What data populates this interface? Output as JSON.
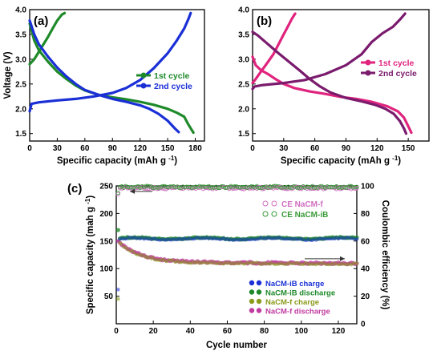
{
  "chart_data": [
    {
      "panel": "(a)",
      "type": "line",
      "xlabel": "Specific capacity (mAh g",
      "xlabel_sup": "-1",
      "xlabel_tail": ")",
      "ylabel": "Voltage (V)",
      "xlim": [
        0,
        190
      ],
      "ylim": [
        1.35,
        4.0
      ],
      "xticks": [
        "0",
        "30",
        "60",
        "90",
        "120",
        "150",
        "180"
      ],
      "yticks": [
        "1.5",
        "2.0",
        "2.5",
        "3.0",
        "3.5",
        "4.0"
      ],
      "legend_position": "right",
      "series": [
        {
          "name": "1st cycle",
          "color": "#1f8a2a",
          "charge": [
            [
              0,
              2.9
            ],
            [
              5,
              3.0
            ],
            [
              10,
              3.15
            ],
            [
              15,
              3.3
            ],
            [
              20,
              3.45
            ],
            [
              25,
              3.62
            ],
            [
              30,
              3.78
            ],
            [
              35,
              3.9
            ],
            [
              38,
              3.93
            ]
          ],
          "discharge": [
            [
              0,
              3.72
            ],
            [
              5,
              3.38
            ],
            [
              10,
              3.18
            ],
            [
              20,
              2.95
            ],
            [
              30,
              2.75
            ],
            [
              40,
              2.6
            ],
            [
              50,
              2.47
            ],
            [
              60,
              2.37
            ],
            [
              75,
              2.28
            ],
            [
              90,
              2.23
            ],
            [
              105,
              2.19
            ],
            [
              120,
              2.14
            ],
            [
              135,
              2.08
            ],
            [
              150,
              2.0
            ],
            [
              160,
              1.92
            ],
            [
              168,
              1.84
            ],
            [
              172,
              1.7
            ],
            [
              176,
              1.58
            ],
            [
              178,
              1.52
            ]
          ]
        },
        {
          "name": "2nd cycle",
          "color": "#1a2fd6",
          "charge": [
            [
              0,
              1.95
            ],
            [
              2,
              2.1
            ],
            [
              10,
              2.13
            ],
            [
              30,
              2.17
            ],
            [
              50,
              2.2
            ],
            [
              70,
              2.25
            ],
            [
              90,
              2.32
            ],
            [
              105,
              2.42
            ],
            [
              120,
              2.58
            ],
            [
              135,
              2.82
            ],
            [
              150,
              3.12
            ],
            [
              160,
              3.38
            ],
            [
              168,
              3.62
            ],
            [
              173,
              3.83
            ],
            [
              175,
              3.93
            ]
          ],
          "discharge": [
            [
              0,
              3.78
            ],
            [
              5,
              3.5
            ],
            [
              10,
              3.3
            ],
            [
              20,
              3.05
            ],
            [
              30,
              2.83
            ],
            [
              40,
              2.65
            ],
            [
              50,
              2.5
            ],
            [
              60,
              2.38
            ],
            [
              75,
              2.28
            ],
            [
              90,
              2.2
            ],
            [
              105,
              2.14
            ],
            [
              120,
              2.07
            ],
            [
              130,
              2.0
            ],
            [
              140,
              1.9
            ],
            [
              150,
              1.76
            ],
            [
              158,
              1.6
            ],
            [
              162,
              1.53
            ]
          ]
        }
      ]
    },
    {
      "panel": "(b)",
      "type": "line",
      "xlabel": "Specific capacity (mAh g",
      "xlabel_sup": "-1",
      "xlabel_tail": ")",
      "ylabel": "",
      "xlim": [
        0,
        170
      ],
      "ylim": [
        1.35,
        4.0
      ],
      "xticks": [
        "0",
        "30",
        "60",
        "90",
        "120",
        "150"
      ],
      "yticks": [
        "1.5",
        "2.0",
        "2.5",
        "3.0",
        "3.5",
        "4.0"
      ],
      "legend_position": "right",
      "series": [
        {
          "name": "1st cycle",
          "color": "#e0247e",
          "charge": [
            [
              0,
              2.52
            ],
            [
              3,
              2.6
            ],
            [
              8,
              2.75
            ],
            [
              15,
              2.95
            ],
            [
              20,
              3.1
            ],
            [
              25,
              3.3
            ],
            [
              30,
              3.5
            ],
            [
              35,
              3.7
            ],
            [
              38,
              3.82
            ],
            [
              41,
              3.92
            ]
          ],
          "discharge": [
            [
              0,
              3.05
            ],
            [
              3,
              2.88
            ],
            [
              8,
              2.78
            ],
            [
              15,
              2.7
            ],
            [
              22,
              2.6
            ],
            [
              30,
              2.5
            ],
            [
              40,
              2.42
            ],
            [
              55,
              2.35
            ],
            [
              70,
              2.3
            ],
            [
              85,
              2.24
            ],
            [
              100,
              2.2
            ],
            [
              115,
              2.14
            ],
            [
              130,
              2.05
            ],
            [
              140,
              1.95
            ],
            [
              146,
              1.82
            ],
            [
              150,
              1.65
            ],
            [
              153,
              1.52
            ]
          ]
        },
        {
          "name": "2nd cycle",
          "color": "#7a1b6d",
          "charge": [
            [
              0,
              2.4
            ],
            [
              2,
              2.45
            ],
            [
              10,
              2.48
            ],
            [
              30,
              2.52
            ],
            [
              50,
              2.58
            ],
            [
              70,
              2.7
            ],
            [
              90,
              2.88
            ],
            [
              105,
              3.1
            ],
            [
              115,
              3.35
            ],
            [
              125,
              3.52
            ],
            [
              135,
              3.65
            ],
            [
              142,
              3.8
            ],
            [
              147,
              3.92
            ]
          ],
          "discharge": [
            [
              0,
              3.55
            ],
            [
              5,
              3.48
            ],
            [
              15,
              3.3
            ],
            [
              25,
              3.12
            ],
            [
              35,
              2.95
            ],
            [
              45,
              2.78
            ],
            [
              55,
              2.6
            ],
            [
              65,
              2.45
            ],
            [
              75,
              2.33
            ],
            [
              90,
              2.22
            ],
            [
              105,
              2.15
            ],
            [
              118,
              2.08
            ],
            [
              128,
              2.0
            ],
            [
              136,
              1.9
            ],
            [
              142,
              1.75
            ],
            [
              146,
              1.6
            ],
            [
              148,
              1.5
            ]
          ]
        }
      ]
    },
    {
      "panel": "(c)",
      "type": "scatter",
      "xlabel": "Cycle number",
      "ylabel": "Specific capacity (mah g",
      "ylabel_sup": "-1",
      "ylabel_tail": ")",
      "y2label": "Coulombic efficiency (%)",
      "xlim": [
        0,
        130
      ],
      "ylim": [
        0,
        250
      ],
      "y2lim": [
        0,
        100
      ],
      "xticks": [
        "0",
        "20",
        "40",
        "60",
        "80",
        "100",
        "120"
      ],
      "yticks": [
        "50",
        "100",
        "150",
        "200",
        "250"
      ],
      "y2ticks": [
        "0",
        "20",
        "40",
        "60",
        "80",
        "100"
      ],
      "legend_top": [
        "CE NaCM-f",
        "CE NaCM-iB"
      ],
      "legend_bottom": [
        "NaCM-iB charge",
        "NaCM-iB discharge",
        "NaCM-f charge",
        "NaCM-f discharge"
      ],
      "colors": {
        "iB_charge": "#1a2fd6",
        "iB_discharge": "#1f8a2a",
        "f_charge": "#8a9a1a",
        "f_discharge": "#c03aa0",
        "ce_f": "#d070c0",
        "ce_iB": "#3a9a3a"
      },
      "notes": {
        "iB_capacity": "about 155 mAh/g, nearly flat over 130 cycles",
        "f_capacity": "about 150 dropping to about 110 mAh/g",
        "first_points": {
          "iB_charge": 62,
          "f_charge": 45,
          "iB_discharge": 170,
          "f_discharge": 150
        },
        "ce": "about 97-100 %, first cycle about 94 %"
      }
    }
  ]
}
